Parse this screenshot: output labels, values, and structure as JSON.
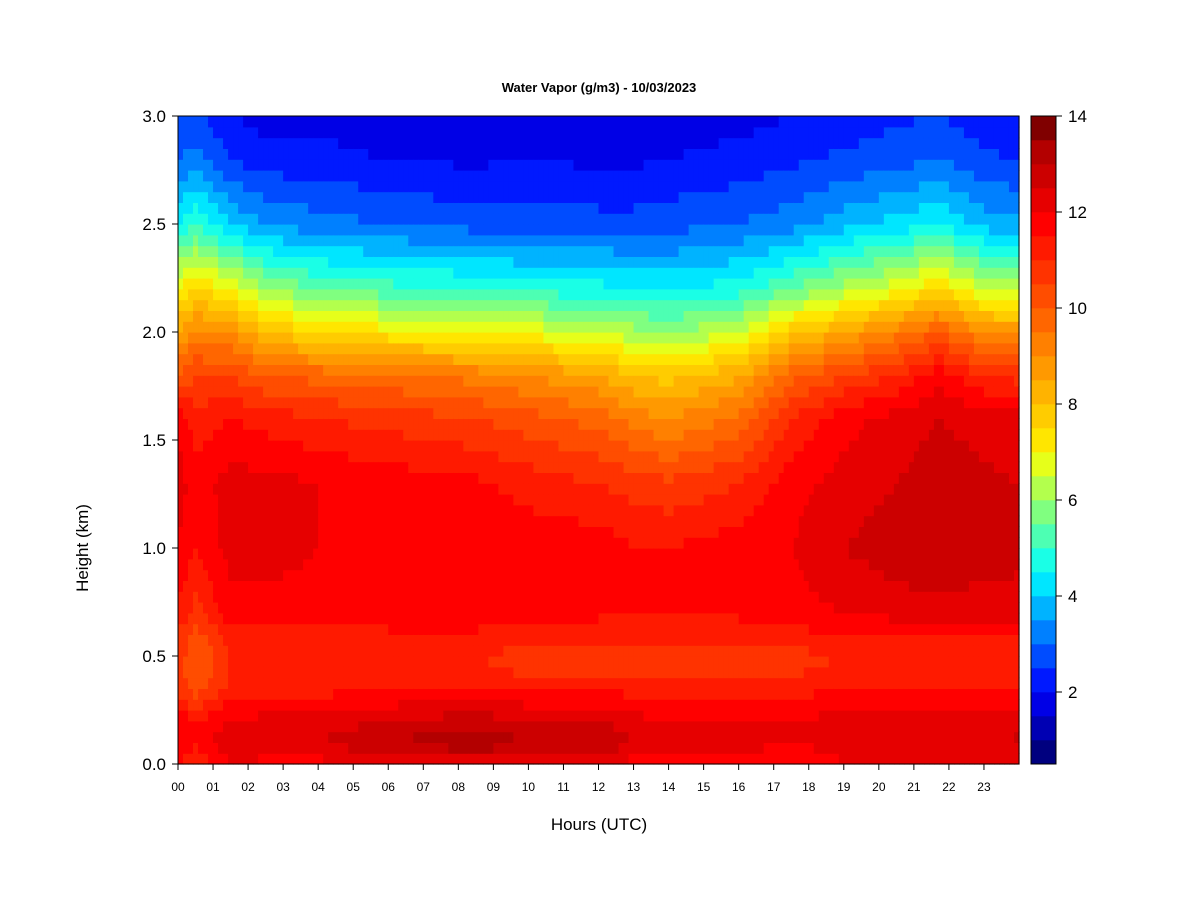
{
  "chart_data": {
    "type": "heatmap",
    "title": "Water Vapor (g/m3) - 10/03/2023",
    "xlabel": "Hours (UTC)",
    "ylabel": "Height (km)",
    "x_tick_labels": [
      "00",
      "01",
      "02",
      "03",
      "04",
      "05",
      "06",
      "07",
      "08",
      "09",
      "10",
      "11",
      "12",
      "13",
      "14",
      "15",
      "16",
      "17",
      "18",
      "19",
      "20",
      "21",
      "22",
      "23"
    ],
    "xlim": [
      0,
      24
    ],
    "y_ticks": [
      0.0,
      0.5,
      1.0,
      1.5,
      2.0,
      2.5,
      3.0
    ],
    "y_tick_labels": [
      "0.0",
      "0.5",
      "1.0",
      "1.5",
      "2.0",
      "2.5",
      "3.0"
    ],
    "ylim": [
      0,
      3
    ],
    "colorbar": {
      "range": [
        0.5,
        14
      ],
      "levels": 27,
      "ticks": [
        2,
        4,
        6,
        8,
        10,
        12,
        14
      ],
      "tick_labels": [
        "2",
        "4",
        "6",
        "8",
        "10",
        "12",
        "14"
      ],
      "colors": [
        "#00007f",
        "#0000b3",
        "#0000e6",
        "#0019ff",
        "#004cff",
        "#0080ff",
        "#00b3ff",
        "#00e6ff",
        "#1affe6",
        "#4dffb3",
        "#80ff80",
        "#b3ff4d",
        "#e6ff1a",
        "#ffe600",
        "#ffcc00",
        "#ffb300",
        "#ff9900",
        "#ff8000",
        "#ff6600",
        "#ff4d00",
        "#ff3300",
        "#ff1a00",
        "#ff0000",
        "#e60000",
        "#cc0000",
        "#b30000",
        "#800000"
      ]
    },
    "profile_heights_km": [
      0.0,
      0.1,
      0.2,
      0.3,
      0.4,
      0.5,
      0.6,
      0.7,
      1.0,
      1.3,
      1.6,
      1.8,
      2.0,
      2.2,
      2.5,
      2.8,
      3.0
    ],
    "profile_hours": [
      0,
      0.5,
      1.5,
      2.5,
      4,
      6,
      8.5,
      10,
      12,
      13,
      14,
      16,
      17.5,
      19,
      20.5,
      21.7,
      23,
      24
    ],
    "values": [
      [
        11.5,
        12.0,
        12.0,
        11.0,
        10.8,
        10.8,
        11.0,
        11.4,
        12.0,
        12.2,
        12.0,
        10.0,
        8.5,
        7.0,
        4.5,
        3.0,
        2.5
      ],
      [
        11.0,
        11.5,
        11.5,
        10.5,
        10.0,
        10.0,
        10.2,
        10.8,
        11.5,
        11.8,
        11.2,
        10.5,
        9.2,
        7.5,
        5.0,
        3.2,
        2.6
      ],
      [
        12.0,
        12.5,
        12.0,
        11.5,
        11.0,
        11.0,
        11.3,
        11.8,
        12.2,
        12.2,
        11.5,
        10.5,
        9.0,
        7.0,
        4.0,
        2.5,
        2.0
      ],
      [
        11.8,
        12.4,
        12.2,
        11.5,
        11.0,
        11.0,
        11.3,
        11.8,
        12.2,
        12.2,
        11.3,
        10.0,
        8.0,
        6.0,
        3.5,
        2.2,
        1.8
      ],
      [
        11.8,
        12.5,
        12.3,
        11.6,
        11.0,
        11.0,
        11.3,
        11.8,
        12.0,
        12.0,
        11.0,
        9.8,
        7.5,
        5.5,
        3.2,
        2.2,
        1.8
      ],
      [
        12.0,
        13.0,
        12.5,
        11.8,
        11.2,
        11.0,
        11.4,
        11.8,
        12.0,
        11.8,
        10.8,
        9.6,
        7.2,
        5.2,
        3.0,
        2.0,
        1.6
      ],
      [
        12.0,
        13.5,
        12.8,
        12.0,
        11.2,
        11.0,
        11.4,
        11.8,
        12.0,
        11.6,
        10.5,
        9.3,
        7.0,
        5.0,
        2.8,
        1.9,
        1.6
      ],
      [
        11.8,
        13.0,
        12.5,
        11.8,
        11.0,
        10.8,
        11.2,
        11.6,
        11.8,
        11.3,
        10.2,
        9.0,
        6.8,
        4.8,
        2.8,
        2.0,
        1.7
      ],
      [
        11.8,
        13.0,
        12.5,
        11.8,
        11.0,
        10.8,
        11.2,
        11.6,
        11.8,
        11.0,
        9.8,
        8.5,
        6.5,
        4.7,
        2.7,
        1.9,
        1.6
      ],
      [
        11.8,
        12.5,
        12.2,
        11.6,
        11.0,
        10.8,
        11.2,
        11.5,
        11.5,
        10.8,
        9.3,
        8.0,
        6.2,
        4.5,
        2.7,
        1.9,
        1.6
      ],
      [
        11.8,
        12.2,
        12.0,
        11.5,
        11.0,
        10.8,
        11.2,
        11.5,
        11.5,
        10.6,
        9.0,
        7.8,
        6.0,
        4.4,
        2.8,
        2.0,
        1.7
      ],
      [
        11.8,
        12.2,
        12.0,
        11.5,
        11.0,
        10.8,
        11.2,
        11.6,
        11.8,
        11.0,
        9.6,
        8.4,
        6.5,
        4.8,
        3.0,
        2.2,
        1.8
      ],
      [
        11.5,
        12.0,
        12.0,
        11.5,
        11.0,
        10.8,
        11.3,
        11.8,
        12.0,
        11.8,
        11.0,
        9.8,
        7.8,
        5.5,
        3.3,
        2.4,
        2.0
      ],
      [
        12.0,
        12.2,
        12.2,
        11.8,
        11.2,
        11.0,
        11.5,
        12.0,
        12.5,
        12.2,
        11.8,
        10.5,
        8.5,
        6.2,
        3.8,
        2.6,
        2.2
      ],
      [
        12.0,
        12.2,
        12.2,
        11.8,
        11.2,
        11.0,
        11.5,
        12.2,
        12.8,
        12.5,
        12.2,
        11.0,
        9.3,
        6.8,
        4.2,
        2.8,
        2.4
      ],
      [
        12.2,
        12.3,
        12.2,
        11.8,
        11.3,
        11.0,
        11.6,
        12.3,
        13.0,
        12.8,
        12.5,
        11.8,
        10.0,
        7.5,
        4.5,
        3.0,
        2.5
      ],
      [
        12.2,
        12.4,
        12.3,
        11.8,
        11.3,
        11.0,
        11.6,
        12.2,
        12.8,
        12.6,
        12.3,
        11.0,
        9.0,
        6.5,
        3.8,
        2.6,
        2.2
      ],
      [
        12.2,
        12.6,
        12.3,
        11.8,
        11.3,
        11.0,
        11.6,
        12.2,
        12.7,
        12.5,
        12.2,
        10.8,
        8.8,
        6.3,
        3.6,
        2.5,
        2.1
      ]
    ]
  }
}
